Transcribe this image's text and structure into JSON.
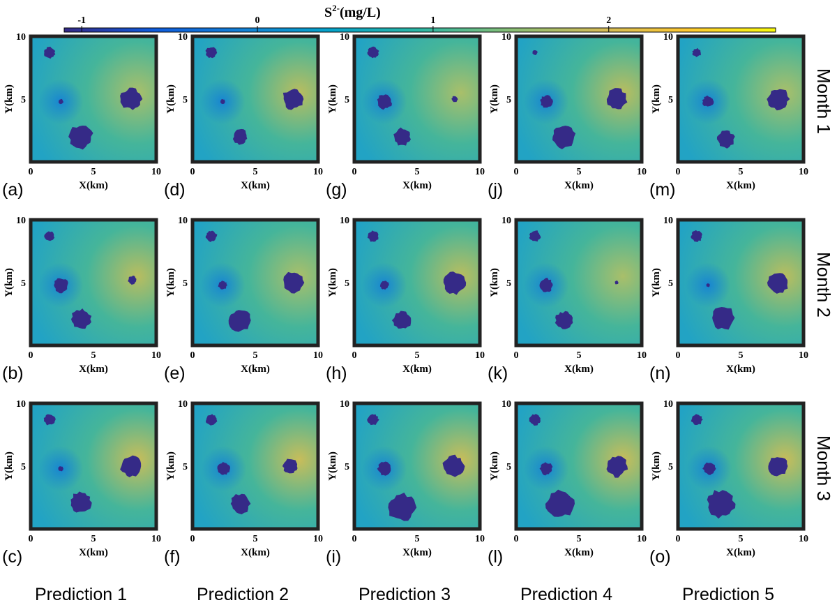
{
  "chart_data": {
    "type": "heatmap",
    "quantity": "S",
    "quantity_sup": "2-",
    "unit": "(mg/L)",
    "colorbar": {
      "ticks": [
        -1,
        0,
        1,
        2
      ],
      "range": [
        -1.1,
        2.95
      ],
      "colors": [
        "#352a87",
        "#0f5cdd",
        "#1481d6",
        "#06a4ca",
        "#2eb7a4",
        "#87bf77",
        "#d1bb59",
        "#fec832",
        "#f9fb0e"
      ]
    },
    "xlabel": "X(km)",
    "ylabel": "Y(km)",
    "xlim": [
      0,
      10
    ],
    "ylim": [
      0,
      10
    ],
    "xticks": [
      0,
      5,
      10
    ],
    "yticks": [
      5,
      10
    ],
    "rows": [
      "Month 1",
      "Month 2",
      "Month 3"
    ],
    "columns": [
      "Prediction 1",
      "Prediction 2",
      "Prediction 3",
      "Prediction 4",
      "Prediction 5"
    ],
    "panels": [
      {
        "label": "(a)",
        "row": 0,
        "col": 0,
        "blobs": [
          [
            1.5,
            8.7,
            0.45
          ],
          [
            2.4,
            4.8,
            0.2
          ],
          [
            8.0,
            5.0,
            0.85
          ],
          [
            4.0,
            2.0,
            0.95
          ]
        ]
      },
      {
        "label": "(b)",
        "row": 1,
        "col": 0,
        "blobs": [
          [
            1.5,
            8.7,
            0.4
          ],
          [
            2.4,
            4.8,
            0.6
          ],
          [
            8.1,
            5.2,
            0.35
          ],
          [
            4.0,
            2.1,
            0.8
          ]
        ]
      },
      {
        "label": "(c)",
        "row": 2,
        "col": 0,
        "blobs": [
          [
            1.5,
            8.7,
            0.45
          ],
          [
            2.4,
            4.8,
            0.2
          ],
          [
            8.0,
            5.0,
            0.85
          ],
          [
            4.0,
            2.1,
            0.85
          ]
        ]
      },
      {
        "label": "(d)",
        "row": 0,
        "col": 1,
        "blobs": [
          [
            1.5,
            8.7,
            0.45
          ],
          [
            2.4,
            4.8,
            0.2
          ],
          [
            8.0,
            5.0,
            0.85
          ],
          [
            3.8,
            2.0,
            0.6
          ]
        ]
      },
      {
        "label": "(e)",
        "row": 1,
        "col": 1,
        "blobs": [
          [
            1.5,
            8.7,
            0.45
          ],
          [
            2.4,
            4.8,
            0.35
          ],
          [
            8.0,
            5.0,
            0.85
          ],
          [
            3.8,
            2.0,
            0.9
          ]
        ]
      },
      {
        "label": "(f)",
        "row": 2,
        "col": 1,
        "blobs": [
          [
            1.5,
            8.7,
            0.45
          ],
          [
            2.5,
            4.8,
            0.5
          ],
          [
            7.8,
            5.0,
            0.6
          ],
          [
            3.8,
            2.0,
            0.8
          ]
        ]
      },
      {
        "label": "(g)",
        "row": 0,
        "col": 2,
        "blobs": [
          [
            1.5,
            8.7,
            0.45
          ],
          [
            2.4,
            4.8,
            0.6
          ],
          [
            8.0,
            5.0,
            0.25
          ],
          [
            3.8,
            2.0,
            0.7
          ]
        ]
      },
      {
        "label": "(h)",
        "row": 1,
        "col": 2,
        "blobs": [
          [
            1.5,
            8.7,
            0.45
          ],
          [
            2.4,
            4.8,
            0.35
          ],
          [
            8.0,
            5.0,
            0.9
          ],
          [
            3.8,
            2.0,
            0.75
          ]
        ]
      },
      {
        "label": "(i)",
        "row": 2,
        "col": 2,
        "blobs": [
          [
            1.5,
            8.7,
            0.45
          ],
          [
            2.4,
            4.8,
            0.55
          ],
          [
            7.9,
            5.0,
            0.85
          ],
          [
            3.8,
            1.7,
            1.1
          ]
        ]
      },
      {
        "label": "(j)",
        "row": 0,
        "col": 3,
        "blobs": [
          [
            1.5,
            8.7,
            0.2
          ],
          [
            2.4,
            4.8,
            0.5
          ],
          [
            8.0,
            5.0,
            0.85
          ],
          [
            3.8,
            2.0,
            0.95
          ]
        ]
      },
      {
        "label": "(k)",
        "row": 1,
        "col": 3,
        "blobs": [
          [
            1.5,
            8.7,
            0.45
          ],
          [
            2.4,
            4.8,
            0.55
          ],
          [
            8.0,
            5.0,
            0.15
          ],
          [
            3.8,
            2.0,
            0.7
          ]
        ]
      },
      {
        "label": "(l)",
        "row": 2,
        "col": 3,
        "blobs": [
          [
            1.5,
            8.7,
            0.45
          ],
          [
            2.4,
            4.8,
            0.5
          ],
          [
            8.0,
            5.0,
            0.85
          ],
          [
            3.5,
            2.0,
            1.1
          ]
        ]
      },
      {
        "label": "(m)",
        "row": 0,
        "col": 4,
        "blobs": [
          [
            1.5,
            8.7,
            0.35
          ],
          [
            2.4,
            4.8,
            0.45
          ],
          [
            8.0,
            5.0,
            0.85
          ],
          [
            3.8,
            1.8,
            0.7
          ]
        ]
      },
      {
        "label": "(n)",
        "row": 1,
        "col": 4,
        "blobs": [
          [
            1.5,
            8.7,
            0.45
          ],
          [
            2.4,
            4.8,
            0.15
          ],
          [
            8.0,
            5.0,
            0.85
          ],
          [
            3.6,
            2.2,
            0.95
          ]
        ]
      },
      {
        "label": "(o)",
        "row": 2,
        "col": 4,
        "blobs": [
          [
            1.5,
            8.7,
            0.45
          ],
          [
            2.5,
            4.8,
            0.5
          ],
          [
            8.0,
            5.0,
            0.8
          ],
          [
            3.4,
            2.0,
            1.1
          ]
        ]
      }
    ]
  }
}
